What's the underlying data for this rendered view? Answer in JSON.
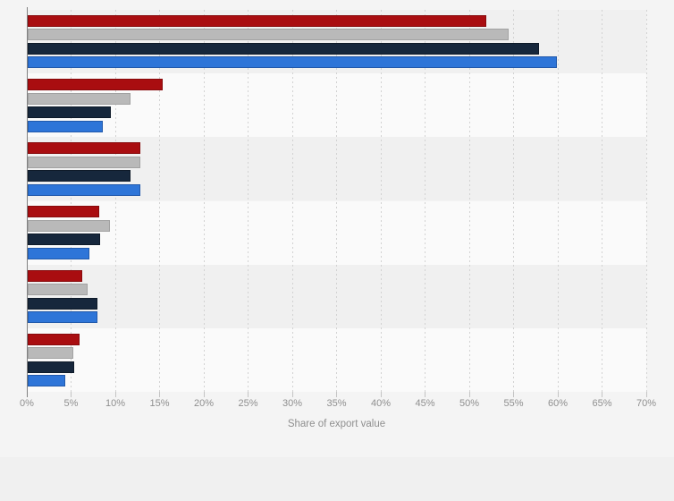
{
  "page": {
    "background_color": "#f0f0f0",
    "canvas_background_color": "#f4f4f4"
  },
  "chart_data": {
    "type": "bar",
    "orientation": "horizontal",
    "title": "",
    "xlabel": "Share of export value",
    "ylabel": "",
    "legend_visible": false,
    "category_labels_visible": false,
    "categories": [
      "",
      "",
      "",
      "",
      "",
      ""
    ],
    "series": [
      {
        "name": "red",
        "color": "#a90d10",
        "border_color": "#870a0c",
        "values": [
          51.8,
          15.3,
          12.7,
          8.1,
          6.2,
          5.9
        ]
      },
      {
        "name": "gray",
        "color": "#b9b9b9",
        "border_color": "#a2a2a2",
        "values": [
          54.3,
          11.6,
          12.7,
          9.3,
          6.8,
          5.2
        ]
      },
      {
        "name": "dark-blue",
        "color": "#16273c",
        "border_color": "#0e1a29",
        "values": [
          57.8,
          9.4,
          11.6,
          8.2,
          7.9,
          5.3
        ]
      },
      {
        "name": "blue",
        "color": "#2e75d8",
        "border_color": "#2159ab",
        "values": [
          59.8,
          8.5,
          12.7,
          7.0,
          7.9,
          4.2
        ]
      }
    ],
    "x_axis": {
      "min": 0,
      "max": 70,
      "tick_step": 5,
      "tick_labels": [
        "0%",
        "5%",
        "10%",
        "15%",
        "20%",
        "25%",
        "30%",
        "35%",
        "40%",
        "45%",
        "50%",
        "55%",
        "60%",
        "65%",
        "70%"
      ],
      "unit": "%"
    },
    "style": {
      "row_stripe_colors": [
        "#f0f0f0",
        "#fafafa"
      ],
      "gridline_color": "#d2d2d2",
      "gridline_style": "dotted",
      "axis_line_color": "#808080",
      "tick_label_color": "#8f8f8f",
      "axis_title_color": "#8f8f8f"
    }
  }
}
